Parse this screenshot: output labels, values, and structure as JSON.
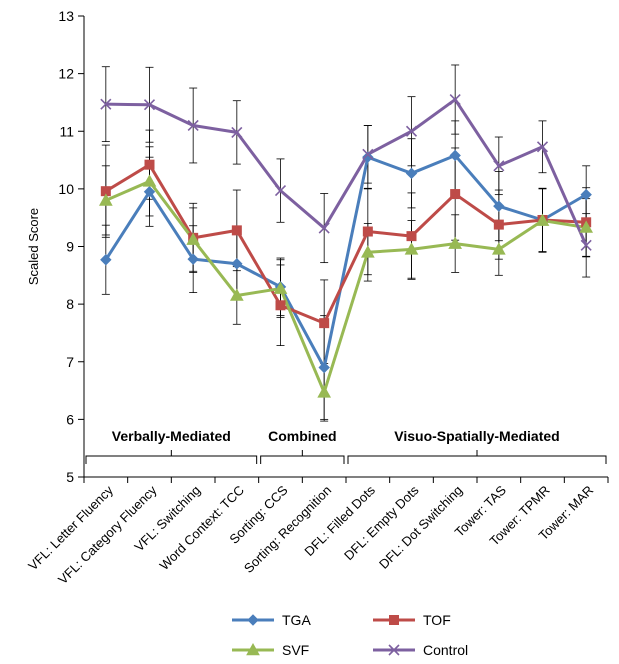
{
  "chart_data": {
    "type": "line",
    "ylabel": "Scaled Score",
    "ylim": [
      5,
      13
    ],
    "yticks": [
      5,
      6,
      7,
      8,
      9,
      10,
      11,
      12,
      13
    ],
    "grid": false,
    "legend_position": "bottom",
    "categories": [
      "VFL: Letter Fluency",
      "VFL: Category Fluency",
      "VFL: Switching",
      "Word Context: TCC",
      "Sorting: CCS",
      "Sorting: Recognition",
      "DFL: Filled Dots",
      "DFL: Empty Dots",
      "DFL: Dot Switching",
      "Tower: TAS",
      "Tower: TPMR",
      "Tower: MAR"
    ],
    "groups": [
      {
        "label": "Verbally-Mediated",
        "from": 0,
        "to": 3
      },
      {
        "label": "Combined",
        "from": 4,
        "to": 5
      },
      {
        "label": "Visuo-Spatially-Mediated",
        "from": 6,
        "to": 11
      }
    ],
    "series": [
      {
        "name": "TGA",
        "color": "#4A7EBB",
        "marker": "diamond",
        "values": [
          8.77,
          9.95,
          8.78,
          8.7,
          8.3,
          6.9,
          10.55,
          10.27,
          10.58,
          9.7,
          9.46,
          9.9
        ],
        "error": [
          0.6,
          0.6,
          0.58,
          0.6,
          0.5,
          0.9,
          0.55,
          0.6,
          0.6,
          0.6,
          0.55,
          0.5
        ]
      },
      {
        "name": "TOF",
        "color": "#BE4B48",
        "marker": "square",
        "values": [
          9.96,
          10.42,
          9.15,
          9.28,
          7.98,
          7.67,
          9.26,
          9.18,
          9.91,
          9.38,
          9.46,
          9.42
        ],
        "error": [
          0.8,
          0.6,
          0.6,
          0.7,
          0.7,
          0.75,
          0.75,
          0.75,
          0.8,
          0.6,
          0.55,
          0.6
        ]
      },
      {
        "name": "SVF",
        "color": "#98B954",
        "marker": "triangle",
        "values": [
          9.8,
          10.13,
          9.12,
          8.15,
          8.27,
          6.47,
          8.9,
          8.95,
          9.05,
          8.95,
          9.45,
          9.33
        ],
        "error": [
          0.6,
          0.6,
          0.55,
          0.5,
          0.5,
          0.5,
          0.5,
          0.5,
          0.5,
          0.45,
          0.55,
          0.5
        ]
      },
      {
        "name": "Control",
        "color": "#7D60A0",
        "marker": "x",
        "values": [
          11.47,
          11.46,
          11.1,
          10.98,
          9.97,
          9.32,
          10.6,
          11.0,
          11.55,
          10.4,
          10.73,
          9.02
        ],
        "error": [
          0.65,
          0.65,
          0.65,
          0.55,
          0.55,
          0.6,
          0.5,
          0.6,
          0.6,
          0.5,
          0.45,
          0.55
        ]
      }
    ]
  }
}
